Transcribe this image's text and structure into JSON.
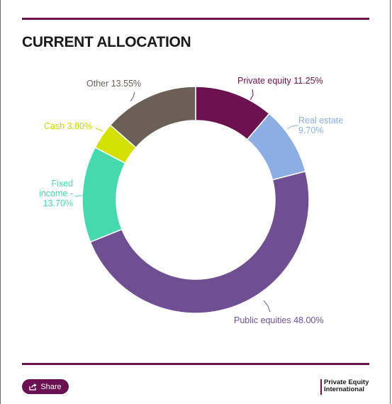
{
  "title": "CURRENT ALLOCATION",
  "share_label": "Share",
  "logo": {
    "line1": "Private Equity",
    "line2": "International"
  },
  "colors": {
    "accent": "#6b1050"
  },
  "chart_data": {
    "type": "pie",
    "style": "donut",
    "title": "CURRENT ALLOCATION",
    "legend": "none",
    "slices": [
      {
        "label": "Private equity 11.25%",
        "value": 11.25,
        "color": "#6b1050"
      },
      {
        "label": "Real estate 9.70%",
        "value": 9.7,
        "color": "#8daee3"
      },
      {
        "label": "Public equities 48.00%",
        "value": 48.0,
        "color": "#6f4f91"
      },
      {
        "label": "Fixed income 13.70%",
        "value": 13.7,
        "color": "#46d9ad"
      },
      {
        "label": "Cash 3.80%",
        "value": 3.8,
        "color": "#d4e000"
      },
      {
        "label": "Other 13.55%",
        "value": 13.55,
        "color": "#6c6056"
      }
    ]
  }
}
